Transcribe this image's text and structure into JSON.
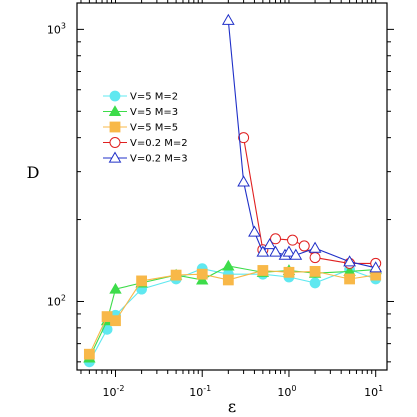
{
  "chart_data": {
    "type": "line",
    "xlabel": "ε",
    "ylabel": "D",
    "xscale": "log",
    "yscale": "log",
    "xlim": [
      0.0036,
      13.5
    ],
    "ylim": [
      56,
      1250
    ],
    "xticks": [
      {
        "value": 0.01,
        "base": "10",
        "exp": "-2"
      },
      {
        "value": 0.1,
        "base": "10",
        "exp": "-1"
      },
      {
        "value": 1,
        "base": "10",
        "exp": "0"
      },
      {
        "value": 10,
        "base": "10",
        "exp": "1"
      }
    ],
    "yticks": [
      {
        "value": 100,
        "base": "10",
        "exp": "2"
      },
      {
        "value": 1000,
        "base": "10",
        "exp": "3"
      }
    ],
    "legend_position": "upper-left",
    "series": [
      {
        "name": "V=5 M=2",
        "color": "#5fe8f0",
        "marker": "circle",
        "filled": true,
        "x": [
          0.005,
          0.008,
          0.01,
          0.02,
          0.05,
          0.1,
          0.2,
          0.5,
          1,
          2,
          5,
          10
        ],
        "y": [
          60,
          79,
          89,
          111,
          121,
          132,
          126,
          126,
          123,
          117,
          131,
          121
        ]
      },
      {
        "name": "V=5 M=3",
        "color": "#3ddc4a",
        "marker": "triangle",
        "filled": true,
        "x": [
          0.005,
          0.008,
          0.01,
          0.02,
          0.05,
          0.1,
          0.2,
          0.5,
          1,
          2,
          5,
          10
        ],
        "y": [
          62,
          85,
          111,
          117,
          125,
          120,
          135,
          128,
          130,
          127,
          129,
          131
        ]
      },
      {
        "name": "V=5 M=5",
        "color": "#f8b848",
        "marker": "square",
        "filled": true,
        "x": [
          0.005,
          0.008,
          0.01,
          0.02,
          0.05,
          0.1,
          0.2,
          0.5,
          1,
          2,
          5,
          10
        ],
        "y": [
          64,
          88,
          85,
          119,
          125,
          126,
          120,
          130,
          128,
          129,
          121,
          125
        ]
      },
      {
        "name": "V=0.2 M=2",
        "color": "#e02020",
        "marker": "circle",
        "filled": false,
        "x": [
          0.3,
          0.5,
          0.7,
          1.1,
          1.5,
          2,
          5,
          10
        ],
        "y": [
          400,
          155,
          170,
          168,
          160,
          145,
          138,
          138
        ]
      },
      {
        "name": "V=0.2 M=3",
        "color": "#2030c8",
        "marker": "triangle",
        "filled": false,
        "x": [
          0.2,
          0.3,
          0.4,
          0.5,
          0.6,
          0.7,
          0.9,
          1.0,
          1.2,
          2,
          5,
          10
        ],
        "y": [
          1080,
          275,
          180,
          152,
          162,
          152,
          148,
          152,
          148,
          157,
          140,
          133
        ]
      }
    ]
  }
}
